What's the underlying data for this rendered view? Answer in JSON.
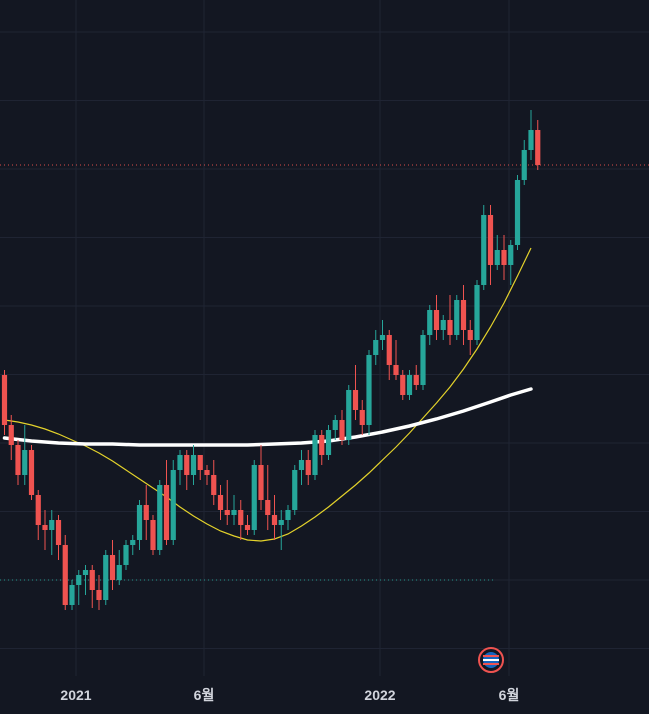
{
  "colors": {
    "background": "#131722",
    "grid": "#1f2433",
    "up": "#26a69a",
    "down": "#ef5350",
    "ma_fast": "#e3d22b",
    "ma_slow": "#ffffff",
    "tick_text": "#d1d4dc",
    "high_line": "#ef5350",
    "low_line": "#26a69a"
  },
  "chart_data": {
    "type": "candlestick",
    "x_tick_labels": [
      "2021",
      "6월",
      "2022",
      "6월"
    ],
    "grid": true,
    "ma_fast": [
      [
        -8,
        20
      ],
      [
        -6,
        18
      ],
      [
        -4,
        15
      ],
      [
        -2,
        11
      ],
      [
        0,
        6
      ],
      [
        2,
        0
      ],
      [
        4,
        -6
      ],
      [
        6,
        -13
      ],
      [
        8,
        -21
      ],
      [
        10,
        -30
      ],
      [
        12,
        -39
      ],
      [
        14,
        -48
      ],
      [
        16,
        -57
      ],
      [
        18,
        -67
      ],
      [
        20,
        -76
      ],
      [
        22,
        -84
      ],
      [
        24,
        -91
      ],
      [
        26,
        -96
      ],
      [
        28,
        -100
      ],
      [
        30,
        -101
      ],
      [
        32,
        -99
      ],
      [
        34,
        -94
      ],
      [
        36,
        -86
      ],
      [
        38,
        -77
      ],
      [
        40,
        -67
      ],
      [
        42,
        -56
      ],
      [
        44,
        -45
      ],
      [
        46,
        -33
      ],
      [
        48,
        -20
      ],
      [
        50,
        -7
      ],
      [
        52,
        7
      ],
      [
        54,
        22
      ],
      [
        56,
        37
      ],
      [
        58,
        53
      ],
      [
        60,
        71
      ],
      [
        62,
        91
      ],
      [
        64,
        113
      ],
      [
        66,
        137
      ],
      [
        68,
        164
      ],
      [
        70,
        192
      ]
    ],
    "ma_slow": [
      [
        -8,
        2
      ],
      [
        -4,
        -1
      ],
      [
        0,
        -3
      ],
      [
        4,
        -4
      ],
      [
        8,
        -4
      ],
      [
        12,
        -5
      ],
      [
        16,
        -5
      ],
      [
        20,
        -5
      ],
      [
        24,
        -5
      ],
      [
        28,
        -5
      ],
      [
        32,
        -4
      ],
      [
        36,
        -3
      ],
      [
        40,
        -1
      ],
      [
        44,
        3
      ],
      [
        48,
        8
      ],
      [
        52,
        14
      ],
      [
        56,
        21
      ],
      [
        60,
        29
      ],
      [
        64,
        38
      ],
      [
        67,
        45
      ],
      [
        70,
        51
      ]
    ],
    "candles": [
      {
        "x": -8,
        "o": 65,
        "h": 70,
        "l": 5,
        "c": 15
      },
      {
        "x": -7,
        "o": 15,
        "h": 25,
        "l": -20,
        "c": -5
      },
      {
        "x": -6,
        "o": -5,
        "h": 0,
        "l": -45,
        "c": -35
      },
      {
        "x": -5,
        "o": -35,
        "h": 15,
        "l": -45,
        "c": -10
      },
      {
        "x": -4,
        "o": -10,
        "h": -5,
        "l": -60,
        "c": -55
      },
      {
        "x": -3,
        "o": -55,
        "h": -50,
        "l": -100,
        "c": -85
      },
      {
        "x": -2,
        "o": -85,
        "h": -70,
        "l": -110,
        "c": -90
      },
      {
        "x": -1,
        "o": -90,
        "h": -70,
        "l": -115,
        "c": -80
      },
      {
        "x": 0,
        "o": -80,
        "h": -75,
        "l": -120,
        "c": -105
      },
      {
        "x": 1,
        "o": -105,
        "h": -95,
        "l": -170,
        "c": -165
      },
      {
        "x": 2,
        "o": -165,
        "h": -140,
        "l": -170,
        "c": -145
      },
      {
        "x": 3,
        "o": -145,
        "h": -130,
        "l": -165,
        "c": -135
      },
      {
        "x": 4,
        "o": -135,
        "h": -125,
        "l": -155,
        "c": -130
      },
      {
        "x": 5,
        "o": -130,
        "h": -125,
        "l": -168,
        "c": -150
      },
      {
        "x": 6,
        "o": -150,
        "h": -135,
        "l": -170,
        "c": -160
      },
      {
        "x": 7,
        "o": -160,
        "h": -110,
        "l": -165,
        "c": -115
      },
      {
        "x": 8,
        "o": -115,
        "h": -100,
        "l": -150,
        "c": -140
      },
      {
        "x": 9,
        "o": -140,
        "h": -110,
        "l": -145,
        "c": -125
      },
      {
        "x": 10,
        "o": -125,
        "h": -100,
        "l": -130,
        "c": -105
      },
      {
        "x": 11,
        "o": -105,
        "h": -95,
        "l": -115,
        "c": -100
      },
      {
        "x": 12,
        "o": -100,
        "h": -60,
        "l": -110,
        "c": -65
      },
      {
        "x": 13,
        "o": -65,
        "h": -45,
        "l": -100,
        "c": -80
      },
      {
        "x": 14,
        "o": -80,
        "h": -75,
        "l": -115,
        "c": -110
      },
      {
        "x": 15,
        "o": -110,
        "h": -40,
        "l": -115,
        "c": -45
      },
      {
        "x": 16,
        "o": -45,
        "h": -20,
        "l": -105,
        "c": -100
      },
      {
        "x": 17,
        "o": -100,
        "h": -20,
        "l": -105,
        "c": -30
      },
      {
        "x": 18,
        "o": -30,
        "h": -10,
        "l": -45,
        "c": -15
      },
      {
        "x": 19,
        "o": -15,
        "h": -10,
        "l": -50,
        "c": -35
      },
      {
        "x": 20,
        "o": -35,
        "h": -5,
        "l": -45,
        "c": -15
      },
      {
        "x": 21,
        "o": -15,
        "h": -15,
        "l": -40,
        "c": -30
      },
      {
        "x": 22,
        "o": -30,
        "h": -25,
        "l": -45,
        "c": -35
      },
      {
        "x": 23,
        "o": -35,
        "h": -20,
        "l": -65,
        "c": -55
      },
      {
        "x": 24,
        "o": -55,
        "h": -45,
        "l": -80,
        "c": -70
      },
      {
        "x": 25,
        "o": -70,
        "h": -40,
        "l": -85,
        "c": -75
      },
      {
        "x": 26,
        "o": -75,
        "h": -55,
        "l": -85,
        "c": -70
      },
      {
        "x": 27,
        "o": -70,
        "h": -60,
        "l": -100,
        "c": -85
      },
      {
        "x": 28,
        "o": -85,
        "h": -75,
        "l": -95,
        "c": -90
      },
      {
        "x": 29,
        "o": -90,
        "h": -20,
        "l": -95,
        "c": -25
      },
      {
        "x": 30,
        "o": -25,
        "h": -5,
        "l": -70,
        "c": -60
      },
      {
        "x": 31,
        "o": -60,
        "h": -25,
        "l": -90,
        "c": -75
      },
      {
        "x": 32,
        "o": -75,
        "h": -55,
        "l": -100,
        "c": -85
      },
      {
        "x": 33,
        "o": -85,
        "h": -70,
        "l": -110,
        "c": -80
      },
      {
        "x": 34,
        "o": -80,
        "h": -65,
        "l": -90,
        "c": -70
      },
      {
        "x": 35,
        "o": -70,
        "h": -25,
        "l": -75,
        "c": -30
      },
      {
        "x": 36,
        "o": -30,
        "h": -10,
        "l": -45,
        "c": -20
      },
      {
        "x": 37,
        "o": -20,
        "h": -10,
        "l": -45,
        "c": -35
      },
      {
        "x": 38,
        "o": -35,
        "h": 10,
        "l": -40,
        "c": 5
      },
      {
        "x": 39,
        "o": 5,
        "h": 10,
        "l": -25,
        "c": -15
      },
      {
        "x": 40,
        "o": -15,
        "h": 15,
        "l": -20,
        "c": 10
      },
      {
        "x": 41,
        "o": 10,
        "h": 25,
        "l": 0,
        "c": 20
      },
      {
        "x": 42,
        "o": 20,
        "h": 30,
        "l": -5,
        "c": 0
      },
      {
        "x": 43,
        "o": 0,
        "h": 55,
        "l": -5,
        "c": 50
      },
      {
        "x": 44,
        "o": 50,
        "h": 75,
        "l": 20,
        "c": 30
      },
      {
        "x": 45,
        "o": 30,
        "h": 40,
        "l": 5,
        "c": 15
      },
      {
        "x": 46,
        "o": 15,
        "h": 90,
        "l": 5,
        "c": 85
      },
      {
        "x": 47,
        "o": 85,
        "h": 110,
        "l": 75,
        "c": 100
      },
      {
        "x": 48,
        "o": 100,
        "h": 120,
        "l": 90,
        "c": 105
      },
      {
        "x": 49,
        "o": 105,
        "h": 110,
        "l": 60,
        "c": 75
      },
      {
        "x": 50,
        "o": 75,
        "h": 100,
        "l": 60,
        "c": 65
      },
      {
        "x": 51,
        "o": 65,
        "h": 70,
        "l": 40,
        "c": 45
      },
      {
        "x": 52,
        "o": 45,
        "h": 70,
        "l": 40,
        "c": 65
      },
      {
        "x": 53,
        "o": 65,
        "h": 75,
        "l": 50,
        "c": 55
      },
      {
        "x": 54,
        "o": 55,
        "h": 110,
        "l": 50,
        "c": 105
      },
      {
        "x": 55,
        "o": 105,
        "h": 135,
        "l": 95,
        "c": 130
      },
      {
        "x": 56,
        "o": 130,
        "h": 145,
        "l": 100,
        "c": 110
      },
      {
        "x": 57,
        "o": 110,
        "h": 125,
        "l": 100,
        "c": 120
      },
      {
        "x": 58,
        "o": 120,
        "h": 145,
        "l": 95,
        "c": 105
      },
      {
        "x": 59,
        "o": 105,
        "h": 145,
        "l": 100,
        "c": 140
      },
      {
        "x": 60,
        "o": 140,
        "h": 155,
        "l": 95,
        "c": 110
      },
      {
        "x": 61,
        "o": 110,
        "h": 120,
        "l": 85,
        "c": 100
      },
      {
        "x": 62,
        "o": 100,
        "h": 160,
        "l": 95,
        "c": 155
      },
      {
        "x": 63,
        "o": 155,
        "h": 235,
        "l": 150,
        "c": 225
      },
      {
        "x": 64,
        "o": 225,
        "h": 235,
        "l": 155,
        "c": 175
      },
      {
        "x": 65,
        "o": 175,
        "h": 205,
        "l": 170,
        "c": 190
      },
      {
        "x": 66,
        "o": 190,
        "h": 205,
        "l": 160,
        "c": 175
      },
      {
        "x": 67,
        "o": 175,
        "h": 200,
        "l": 155,
        "c": 195
      },
      {
        "x": 68,
        "o": 195,
        "h": 265,
        "l": 190,
        "c": 260
      },
      {
        "x": 69,
        "o": 260,
        "h": 300,
        "l": 255,
        "c": 290
      },
      {
        "x": 70,
        "o": 290,
        "h": 330,
        "l": 280,
        "c": 310
      },
      {
        "x": 71,
        "o": 310,
        "h": 320,
        "l": 270,
        "c": 275
      }
    ],
    "horizontal_lines": [
      {
        "name": "recent-high",
        "value": 275,
        "color": "#ef5350"
      },
      {
        "name": "range-low",
        "value": -140,
        "color": "#26a69a"
      }
    ]
  }
}
